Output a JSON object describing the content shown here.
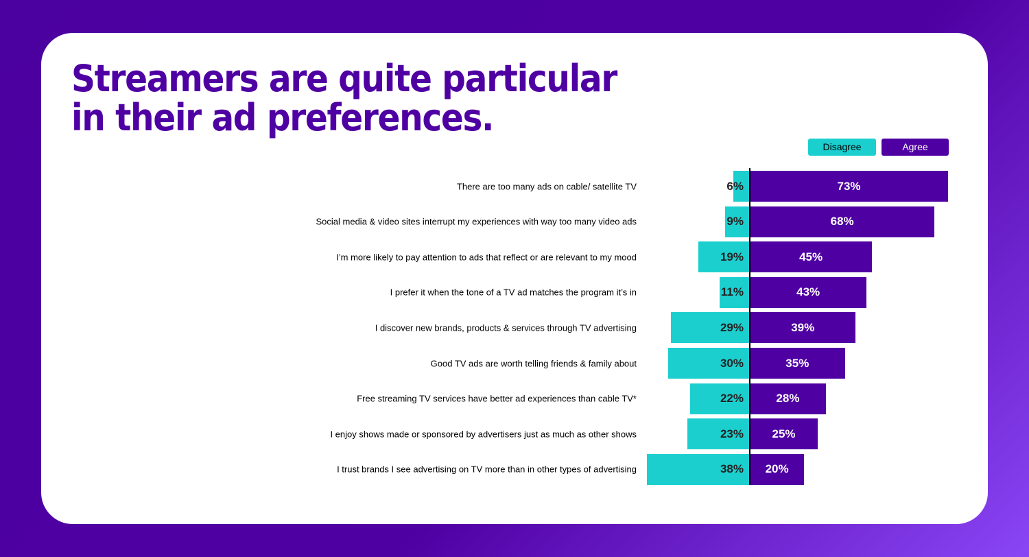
{
  "title": [
    "Streamers are quite particular",
    "in their ad preferences."
  ],
  "colors": {
    "disagree": "#1ccfcf",
    "agree": "#4f00a3",
    "title": "#4f00a3"
  },
  "chart_data": {
    "type": "bar",
    "orientation": "horizontal-diverging",
    "legend": {
      "placement": "top-right",
      "entries": [
        "Disagree",
        "Agree"
      ]
    },
    "categories": [
      "There are too many ads on cable/ satellite TV",
      "Social media & video sites interrupt my experiences with way too many video ads",
      "I’m more likely to pay attention to ads that reflect or are relevant to my mood",
      "I prefer it when the tone of a TV ad matches the program it’s in",
      "I discover new brands, products & services through TV advertising",
      "Good TV ads are worth telling friends & family about",
      "Free streaming TV services have better ad experiences than cable TV*",
      "I enjoy shows made or sponsored by advertisers just as much as other shows",
      "I trust brands I see advertising on TV more than in other types of advertising"
    ],
    "series": [
      {
        "name": "Disagree",
        "values": [
          6,
          9,
          19,
          11,
          29,
          30,
          22,
          23,
          38
        ],
        "labels": [
          "6%",
          "9%",
          "19%",
          "11%",
          "29%",
          "30%",
          "22%",
          "23%",
          "38%"
        ]
      },
      {
        "name": "Agree",
        "values": [
          73,
          68,
          45,
          43,
          39,
          35,
          28,
          25,
          20
        ],
        "labels": [
          "73%",
          "68%",
          "45%",
          "43%",
          "39%",
          "35%",
          "28%",
          "25%",
          "20%"
        ]
      }
    ],
    "unit": "%",
    "grid": false
  }
}
